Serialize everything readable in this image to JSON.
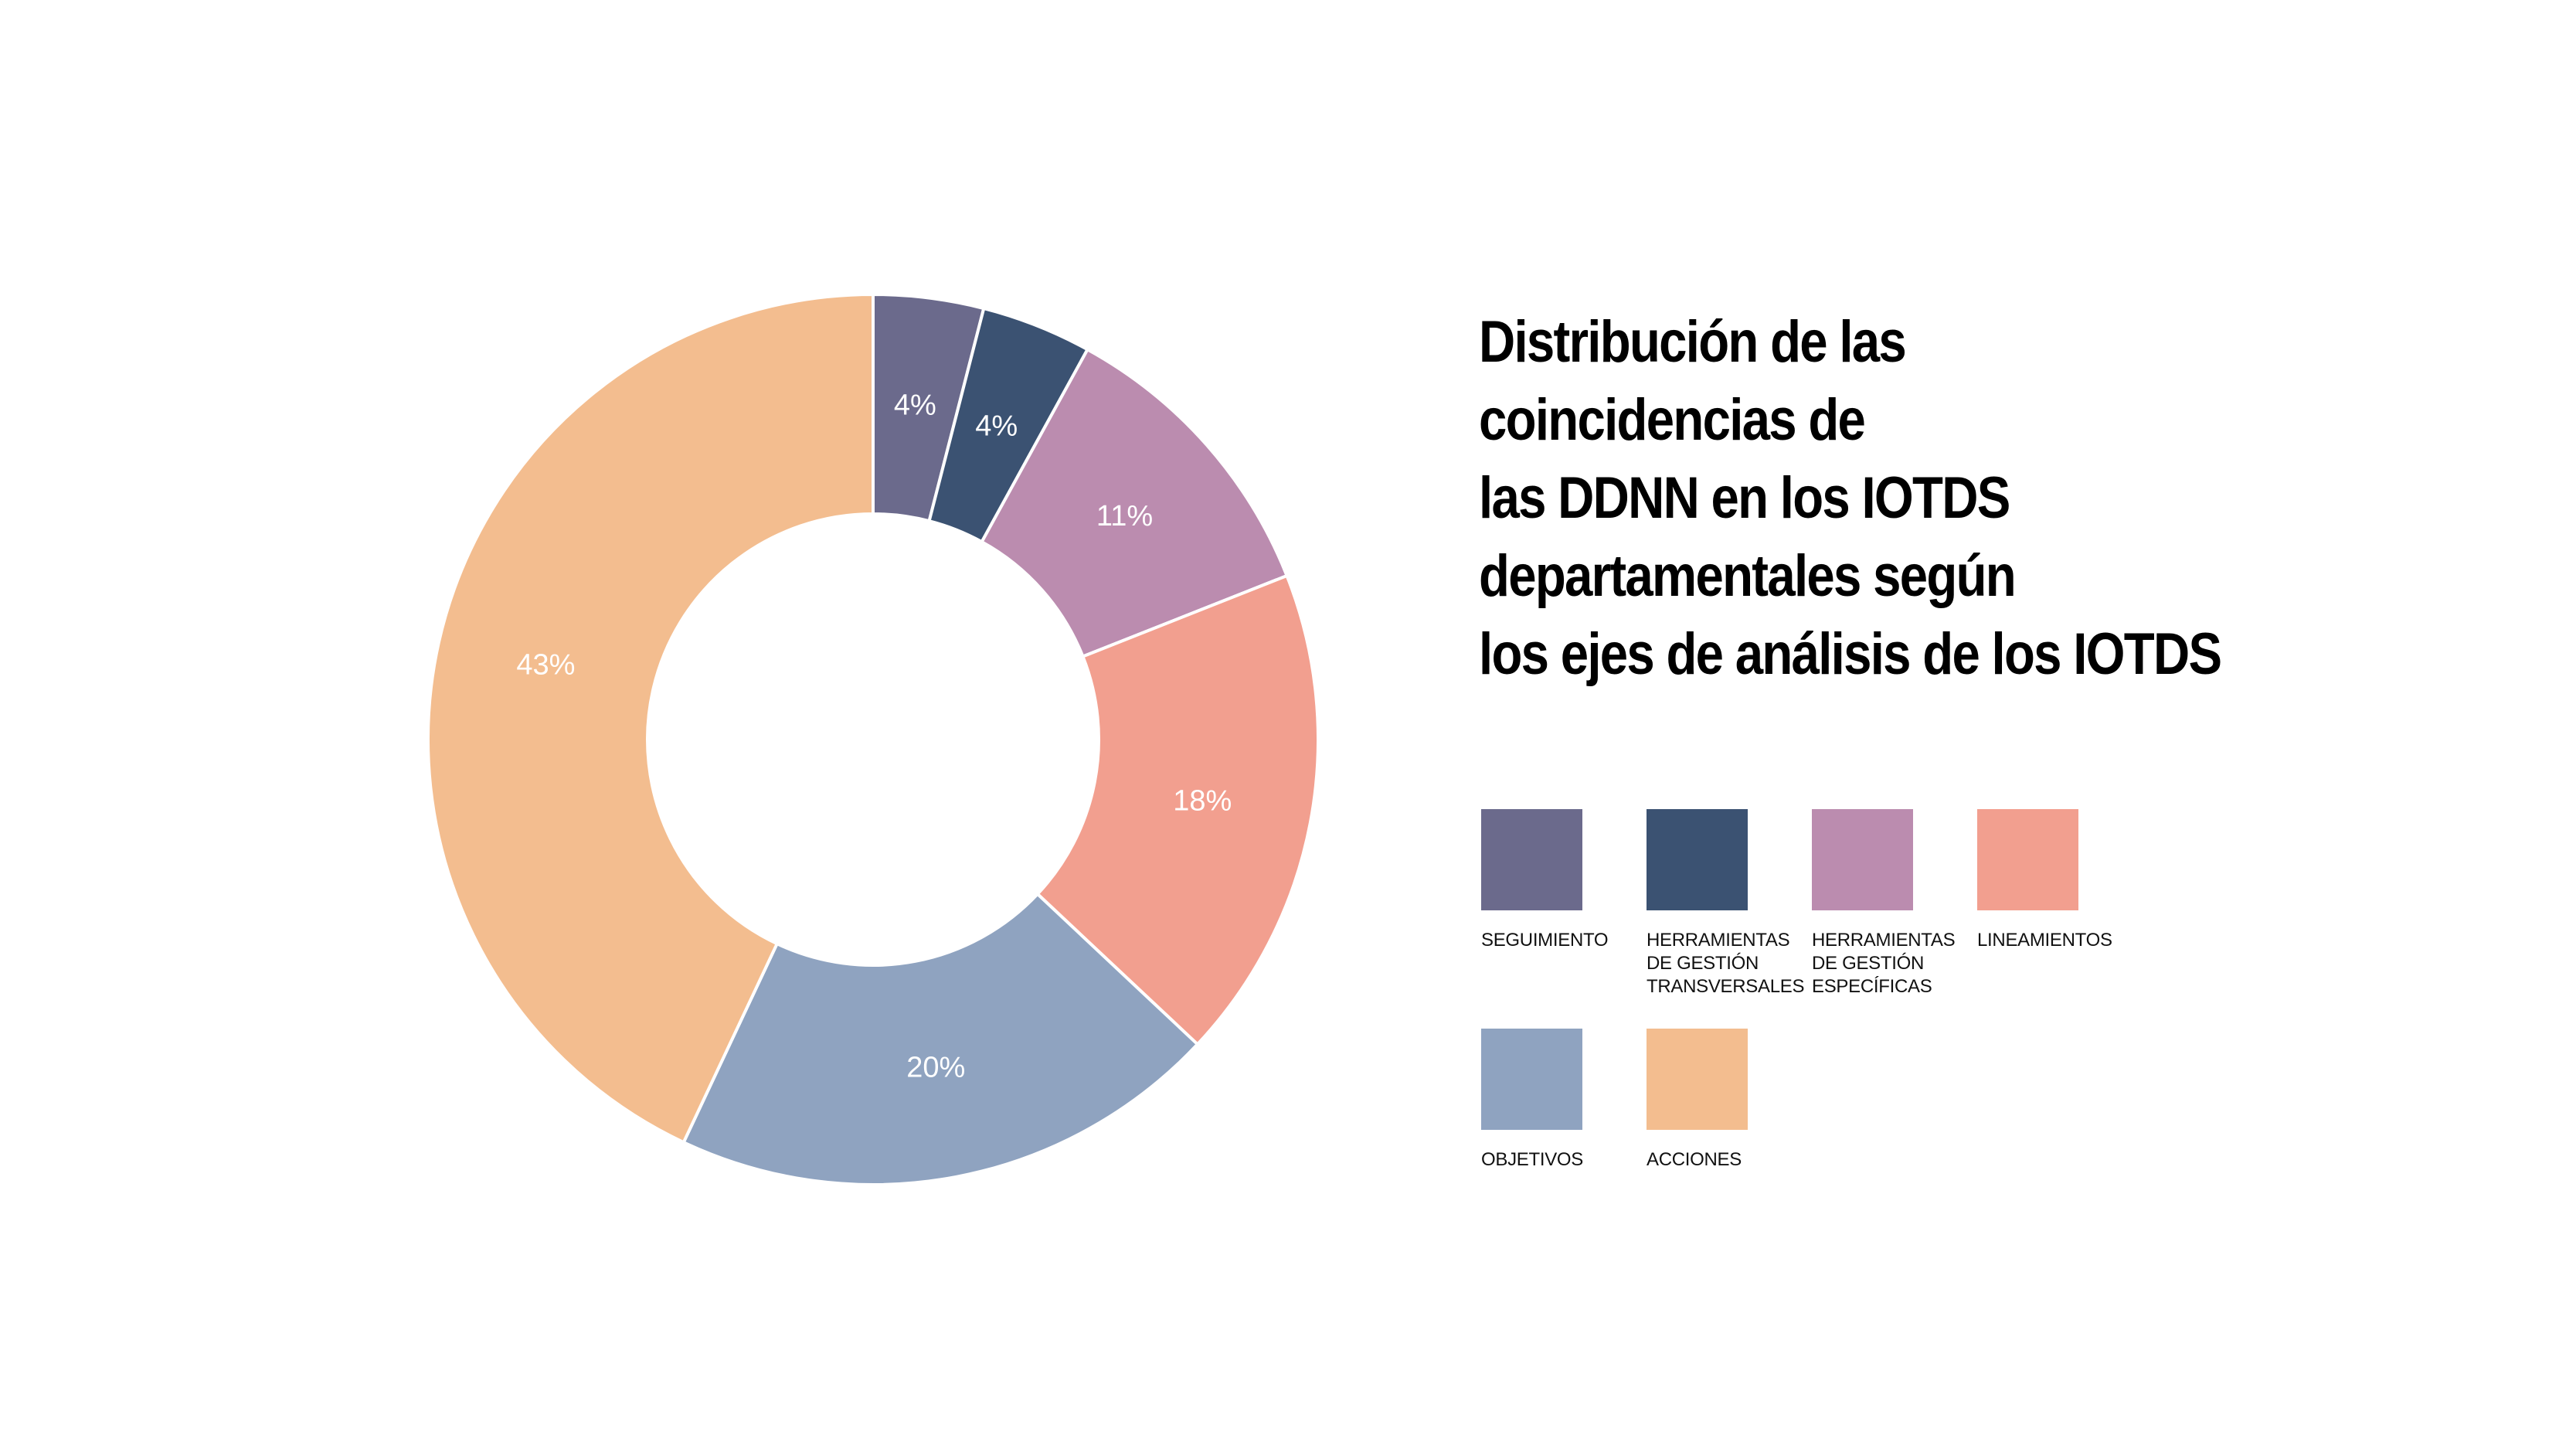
{
  "chart_data": {
    "type": "pie",
    "variant": "donut",
    "title_lines": [
      "Distribución de las",
      "coincidencias de",
      "las DDNN en los IOTDS",
      "departamentales según",
      "los ejes de análisis de los IOTDS"
    ],
    "slices": [
      {
        "name": "SEGUIMIENTO",
        "legend_label": "SEGUIMIENTO",
        "value": 4,
        "label": "4%",
        "color": "#6b6a8c"
      },
      {
        "name": "HERRAMIENTAS DE GESTIÓN TRANSVERSALES",
        "legend_label": "HERRAMIENTAS\nDE GESTIÓN\nTRANSVERSALES",
        "value": 4,
        "label": "4%",
        "color": "#3b5272"
      },
      {
        "name": "HERRAMIENTAS DE GESTIÓN ESPECÍFICAS",
        "legend_label": "HERRAMIENTAS\nDE GESTIÓN\nESPECÍFICAS",
        "value": 11,
        "label": "11%",
        "color": "#bb8caf"
      },
      {
        "name": "LINEAMIENTOS",
        "legend_label": "LINEAMIENTOS",
        "value": 18,
        "label": "18%",
        "color": "#f29f8f"
      },
      {
        "name": "OBJETIVOS",
        "legend_label": "OBJETIVOS",
        "value": 20,
        "label": "20%",
        "color": "#8fa3c0"
      },
      {
        "name": "ACCIONES",
        "legend_label": "ACCIONES",
        "value": 43,
        "label": "43%",
        "color": "#f3bd8f"
      }
    ],
    "legend_placement": "right"
  }
}
